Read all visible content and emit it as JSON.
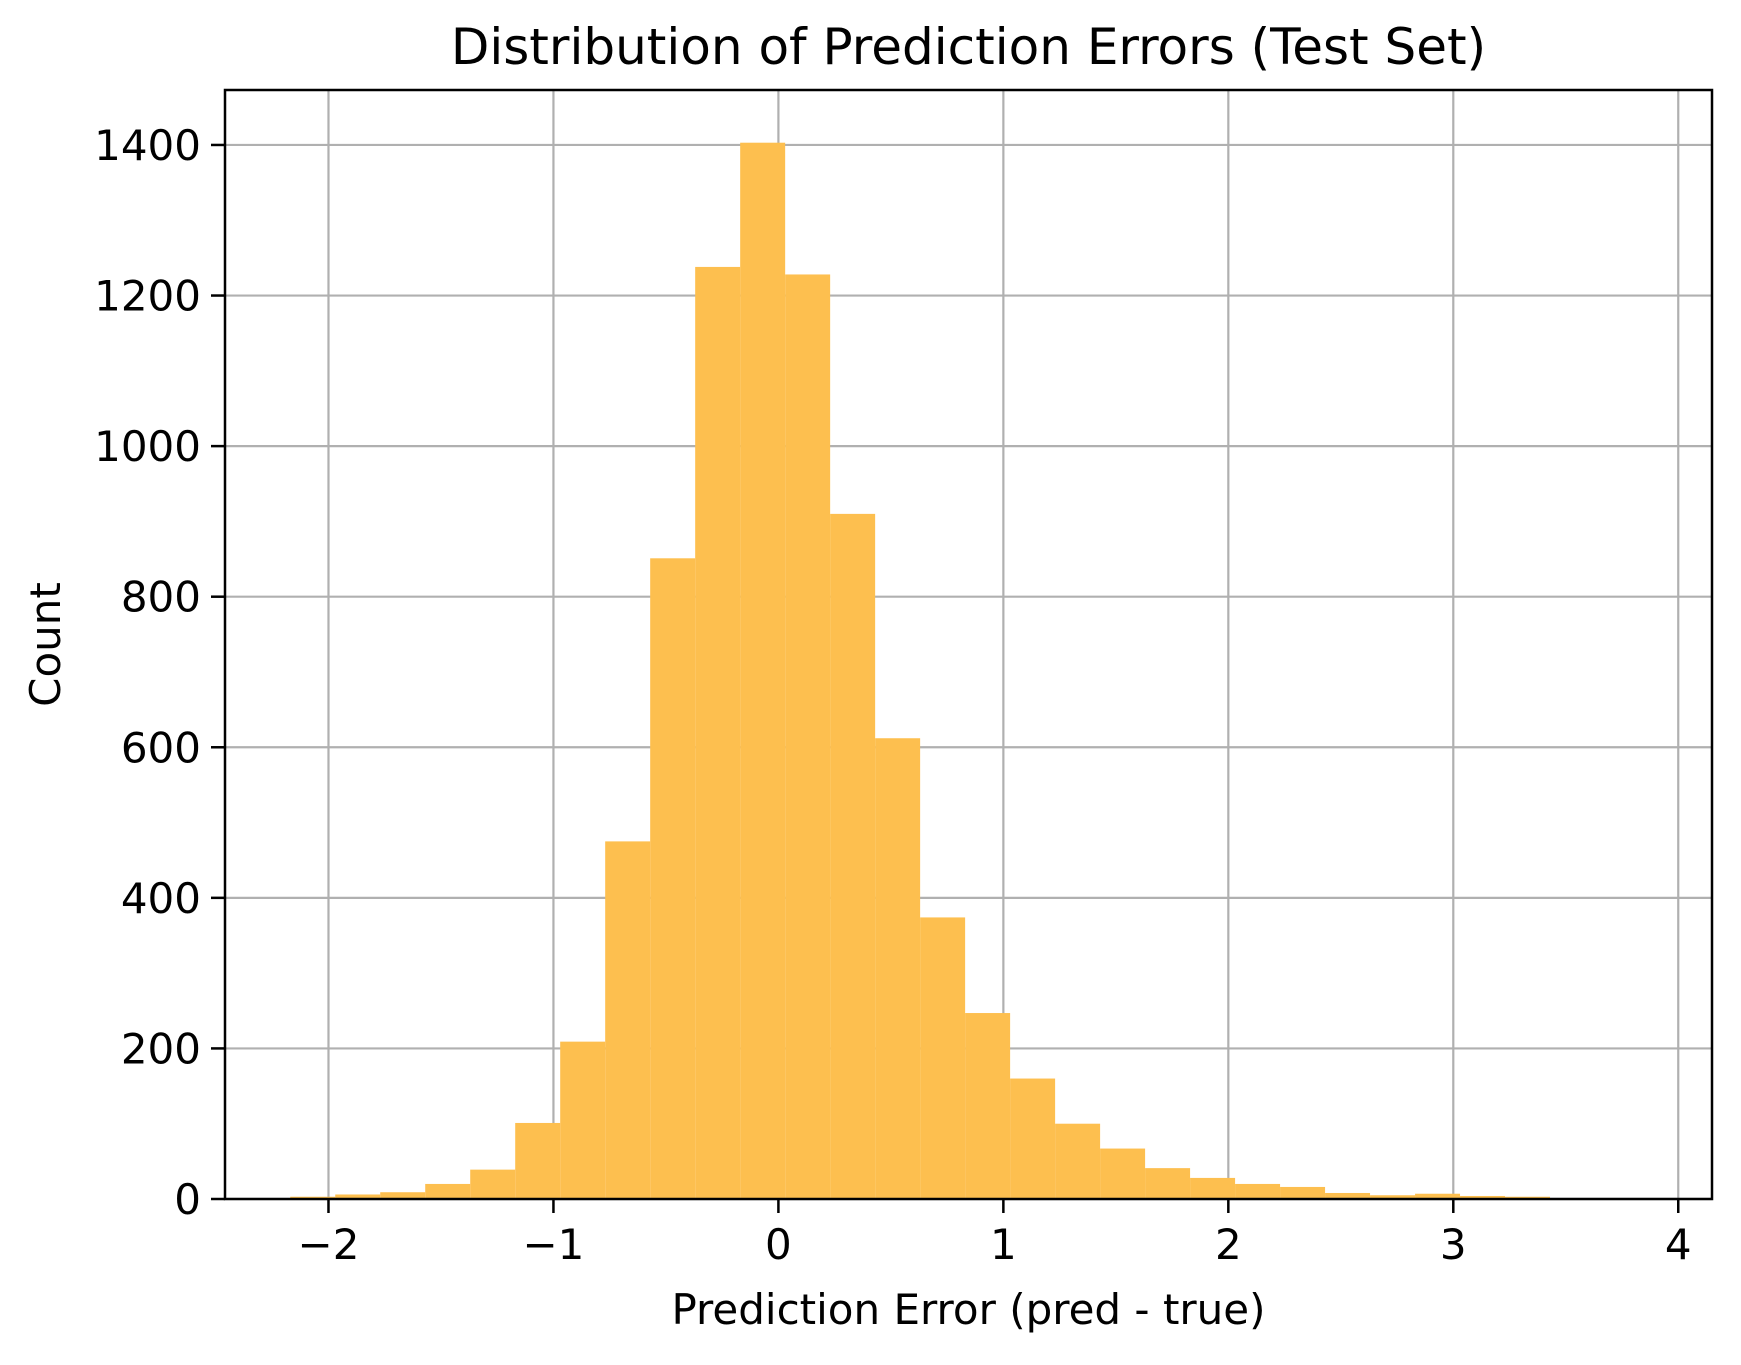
{
  "chart_data": {
    "type": "bar",
    "subtype": "histogram",
    "title": "Distribution of Prediction Errors (Test Set)",
    "xlabel": "Prediction Error (pred - true)",
    "ylabel": "Count",
    "bin_start": -2.17,
    "bin_width": 0.2,
    "counts": [
      3,
      6,
      9,
      20,
      39,
      101,
      209,
      475,
      851,
      1238,
      1403,
      1228,
      910,
      612,
      374,
      247,
      160,
      100,
      67,
      41,
      28,
      20,
      16,
      8,
      5,
      7,
      4,
      3,
      1,
      1
    ],
    "xlim": [
      -2.46,
      4.15
    ],
    "ylim": [
      0,
      1473
    ],
    "xticks": {
      "values": [
        -2,
        -1,
        0,
        1,
        2,
        3,
        4
      ],
      "labels": [
        "−2",
        "−1",
        "0",
        "1",
        "2",
        "3",
        "4"
      ]
    },
    "yticks": {
      "values": [
        0,
        200,
        400,
        600,
        800,
        1000,
        1200,
        1400
      ],
      "labels": [
        "0",
        "200",
        "400",
        "600",
        "800",
        "1000",
        "1200",
        "1400"
      ]
    },
    "grid": true,
    "legend_position": "none",
    "bar_color": "#fdbf4f",
    "grid_color": "#b0b0b0",
    "spine_color": "#000000",
    "background_color": "#ffffff"
  }
}
